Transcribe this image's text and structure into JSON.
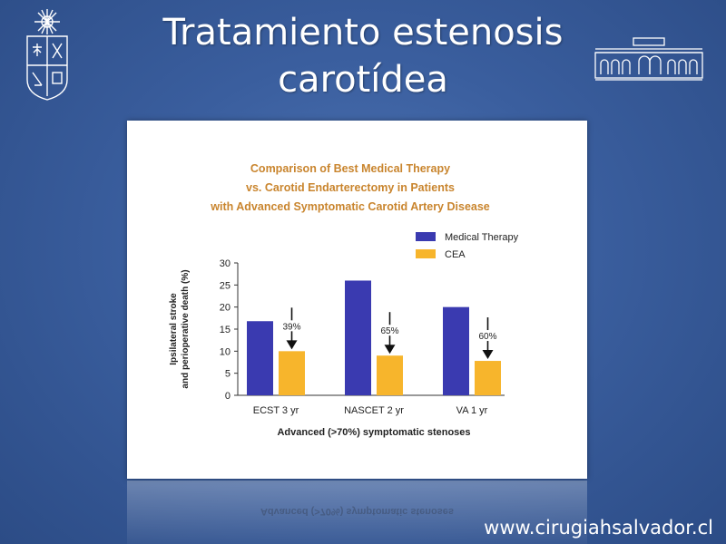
{
  "slide": {
    "title_line1": "Tratamiento estenosis",
    "title_line2": "carotídea",
    "website": "www.cirugiahsalvador.cl"
  },
  "colors": {
    "background": "#3a5e9e",
    "medical_therapy": "#3a3ab0",
    "cea": "#f7b52c",
    "chart_title": "#c9852e"
  },
  "chart_data": {
    "type": "bar",
    "title_lines": [
      "Comparison of Best Medical Therapy",
      "vs. Carotid Endarterectomy in Patients",
      "with Advanced Symptomatic Carotid Artery Disease"
    ],
    "xlabel": "Advanced (>70%) symptomatic stenoses",
    "ylabel_lines": [
      "Ipsilateral stroke",
      "and perioperative death (%)"
    ],
    "ylim": [
      0,
      30
    ],
    "yticks": [
      0,
      5,
      10,
      15,
      20,
      25,
      30
    ],
    "categories": [
      "ECST 3 yr",
      "NASCET 2 yr",
      "VA 1 yr"
    ],
    "series": [
      {
        "name": "Medical Therapy",
        "values": [
          16.8,
          26,
          20
        ]
      },
      {
        "name": "CEA",
        "values": [
          10,
          9,
          7.8
        ]
      }
    ],
    "annotations": [
      "39%",
      "65%",
      "60%"
    ],
    "legend_position": "top-right",
    "grid": false
  }
}
